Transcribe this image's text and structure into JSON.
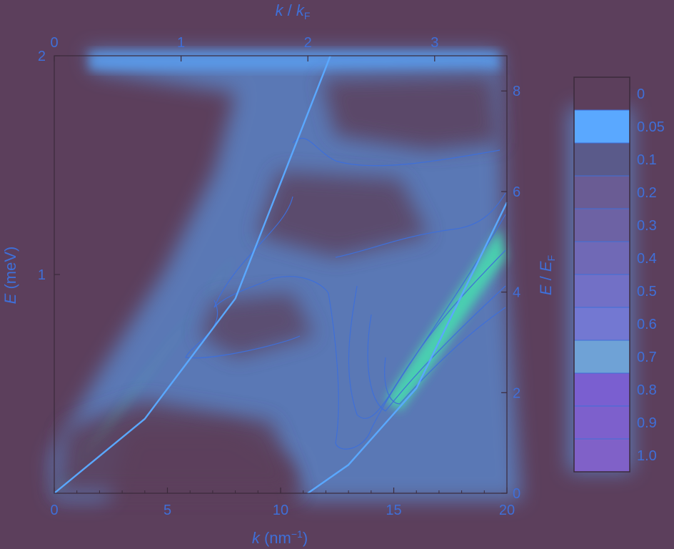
{
  "chart_data": {
    "type": "heatmap",
    "title": "",
    "xlabel": {
      "main": "k",
      "unit": "(nm",
      "sup": "−1",
      "close": ")"
    },
    "ylabel": {
      "main": "E",
      "unit": "(meV)"
    },
    "x2label": {
      "main": "k",
      "sep": " / ",
      "var": "k",
      "sub": "F"
    },
    "y2label": {
      "main": "E",
      "sep": " / ",
      "var": "E",
      "sub": "F"
    },
    "xlim": [
      0,
      20
    ],
    "ylim": [
      0,
      2
    ],
    "x2lim": [
      0,
      3.57
    ],
    "y2lim": [
      0,
      8.7
    ],
    "x_ticks": [
      "0",
      "5",
      "10",
      "15",
      "20"
    ],
    "y_ticks": [
      "1",
      "2"
    ],
    "x2_ticks": [
      "0",
      "1",
      "2",
      "3"
    ],
    "y2_ticks": [
      "0",
      "2",
      "4",
      "6",
      "8"
    ],
    "colorbar_labels": [
      "0",
      "0.05",
      "0.1",
      "0.2",
      "0.3",
      "0.4",
      "0.5",
      "0.6",
      "0.7",
      "0.8",
      "0.9",
      "1.0"
    ],
    "colors": {
      "background": "#5c3f5c",
      "contour": "#3f6fd8",
      "glow": "#5aa8ff",
      "peak": "#46e0b0",
      "axis": "#3b2a3b"
    },
    "series": [
      {
        "values": [
          [
            0,
            0
          ],
          [
            4,
            0.34
          ],
          [
            8,
            0.89
          ],
          [
            12.2,
            2
          ]
        ]
      },
      {
        "values": [
          [
            11.2,
            0
          ],
          [
            13,
            0.13
          ],
          [
            16,
            0.48
          ],
          [
            20,
            1.33
          ]
        ]
      }
    ]
  }
}
